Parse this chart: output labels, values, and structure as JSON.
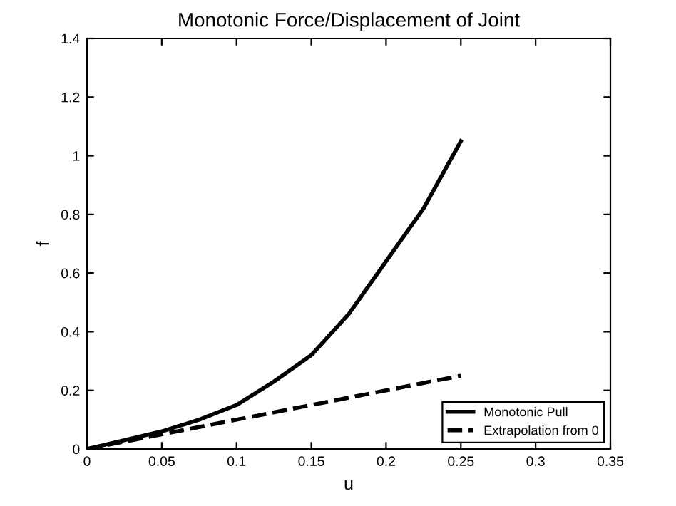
{
  "chart_data": {
    "type": "line",
    "title": "Monotonic Force/Displacement of Joint",
    "xlabel": "u",
    "ylabel": "f",
    "series": [
      {
        "name": "Monotonic Pull",
        "color": "#000000",
        "line_style": "solid",
        "x": [
          0,
          0.025,
          0.05,
          0.075,
          0.1,
          0.125,
          0.15,
          0.175,
          0.2,
          0.225,
          0.25
        ],
        "values": [
          0,
          0.03,
          0.06,
          0.1,
          0.15,
          0.23,
          0.32,
          0.46,
          0.64,
          0.82,
          1.05
        ]
      },
      {
        "name": "Extrapolation from 0",
        "color": "#000000",
        "line_style": "dashed",
        "x": [
          0,
          0.25
        ],
        "values": [
          0,
          0.25
        ]
      }
    ],
    "xlim": [
      0,
      0.35
    ],
    "ylim": [
      0,
      1.4
    ],
    "xticks": [
      0,
      0.05,
      0.1,
      0.15,
      0.2,
      0.25,
      0.3,
      0.35
    ],
    "yticks": [
      0,
      0.2,
      0.4,
      0.6,
      0.8,
      1,
      1.2,
      1.4
    ],
    "grid": false,
    "legend": "bottom right"
  }
}
